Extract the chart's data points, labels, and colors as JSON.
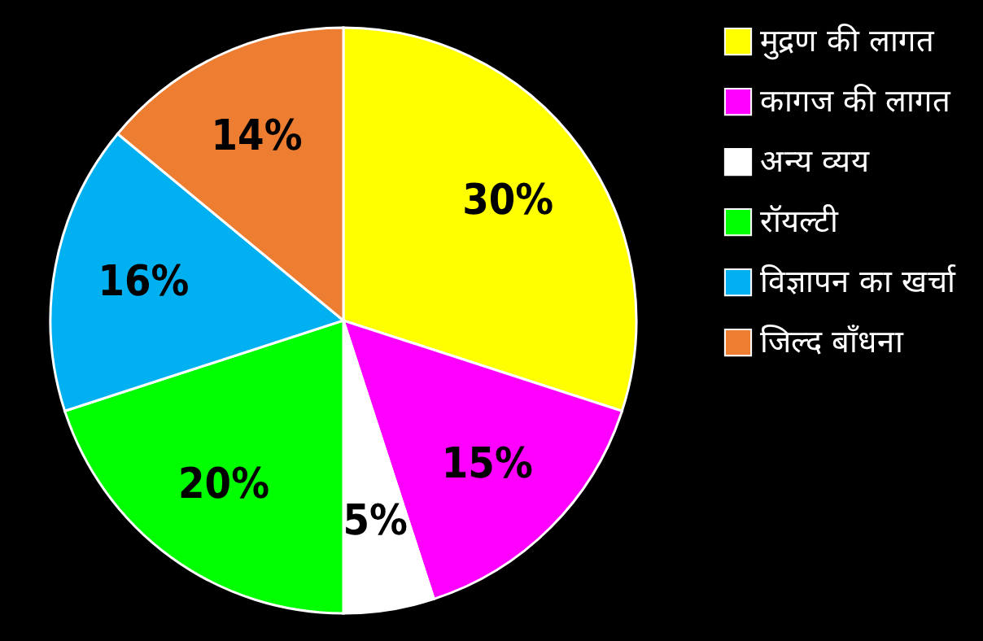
{
  "chart_data": {
    "type": "pie",
    "categories": [
      "मुद्रण की लागत",
      "कागज की लागत",
      "अन्य व्यय",
      "रॉयल्टी",
      "विज्ञापन का खर्चा",
      "जिल्द बाँधना"
    ],
    "values": [
      30,
      15,
      5,
      20,
      16,
      14
    ],
    "colors": [
      "#ffff00",
      "#ff00ff",
      "#ffffff",
      "#00ff00",
      "#00b0f0",
      "#ed7d31"
    ],
    "value_labels": [
      "30%",
      "15%",
      "5%",
      "20%",
      "16%",
      "14%"
    ],
    "legend": "right"
  }
}
